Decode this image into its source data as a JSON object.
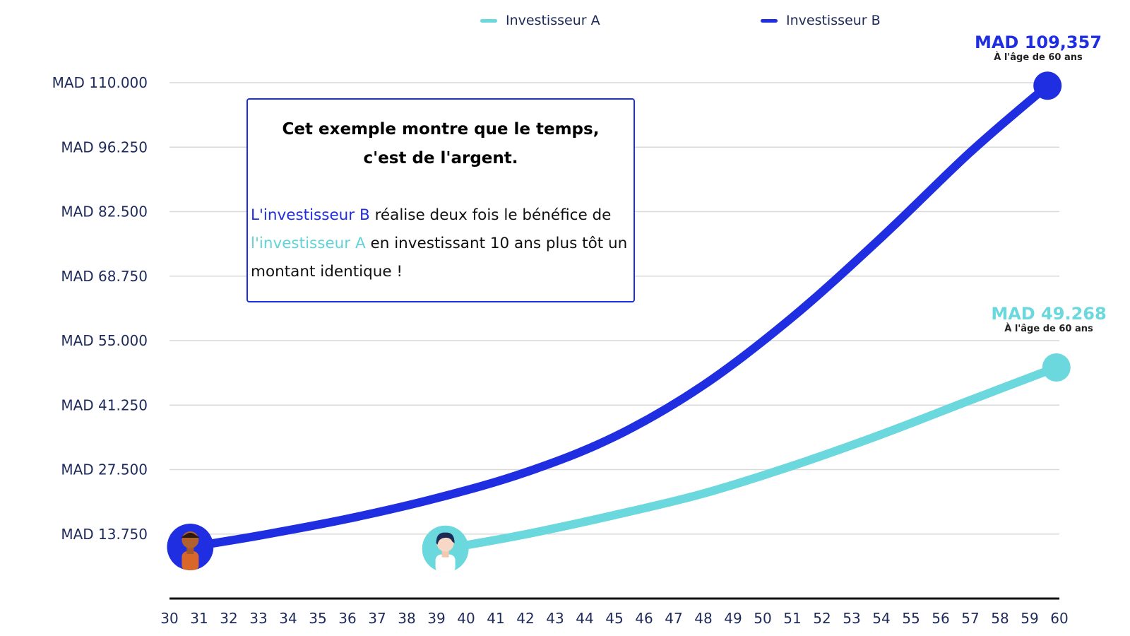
{
  "legend": {
    "a_label": "Investisseur A",
    "b_label": "Investisseur B"
  },
  "colors": {
    "investor_a": "#6ad8dc",
    "investor_b": "#1f2ee0",
    "grid": "#d9d9d9",
    "axis_text": "#1e2a5a"
  },
  "callout": {
    "title": "Cet exemple montre que le temps, c'est de l'argent.",
    "body_b_highlight": "L'investisseur B",
    "body_part1": " réalise deux fois le bénéfice de ",
    "body_a_highlight": "l'investisseur A",
    "body_part2": " en investissant 10 ans plus tôt un montant identique !"
  },
  "end_labels": {
    "b_amount": "MAD 109,357",
    "b_note": "À l'âge de 60 ans",
    "a_amount": "MAD 49.268",
    "a_note": "À l'âge de 60 ans"
  },
  "chart_data": {
    "type": "line",
    "title": "",
    "xlabel": "",
    "ylabel": "",
    "xlim": [
      30,
      60
    ],
    "ylim": [
      0,
      110000
    ],
    "x_ticks": [
      30,
      31,
      32,
      33,
      34,
      35,
      36,
      37,
      38,
      39,
      40,
      41,
      42,
      43,
      44,
      45,
      46,
      47,
      48,
      49,
      50,
      51,
      52,
      53,
      54,
      55,
      56,
      57,
      58,
      59,
      60
    ],
    "y_ticks": [
      13750,
      27500,
      41250,
      55000,
      68750,
      82500,
      96250,
      110000
    ],
    "y_tick_labels": [
      "MAD 13.750",
      "MAD 27.500",
      "MAD 41.250",
      "MAD 55.000",
      "MAD 68.750",
      "MAD 82.500",
      "MAD 96.250",
      "MAD 110.000"
    ],
    "grid": true,
    "legend_position": "top",
    "series": [
      {
        "name": "Investisseur A",
        "color": "#6ad8dc",
        "marker_icon": "investor-a-avatar",
        "x": [
          39.3,
          42,
          45,
          48,
          51,
          54,
          57,
          59.9
        ],
        "y": [
          10600,
          13700,
          17800,
          22400,
          28300,
          35000,
          42300,
          49268
        ]
      },
      {
        "name": "Investisseur B",
        "color": "#1f2ee0",
        "marker_icon": "investor-b-avatar",
        "x": [
          30.7,
          33,
          36,
          39,
          42,
          45,
          48,
          51,
          54,
          57,
          59.6
        ],
        "y": [
          11000,
          13400,
          17000,
          21400,
          26900,
          34500,
          45500,
          60000,
          77000,
          95200,
          109357
        ]
      }
    ]
  }
}
